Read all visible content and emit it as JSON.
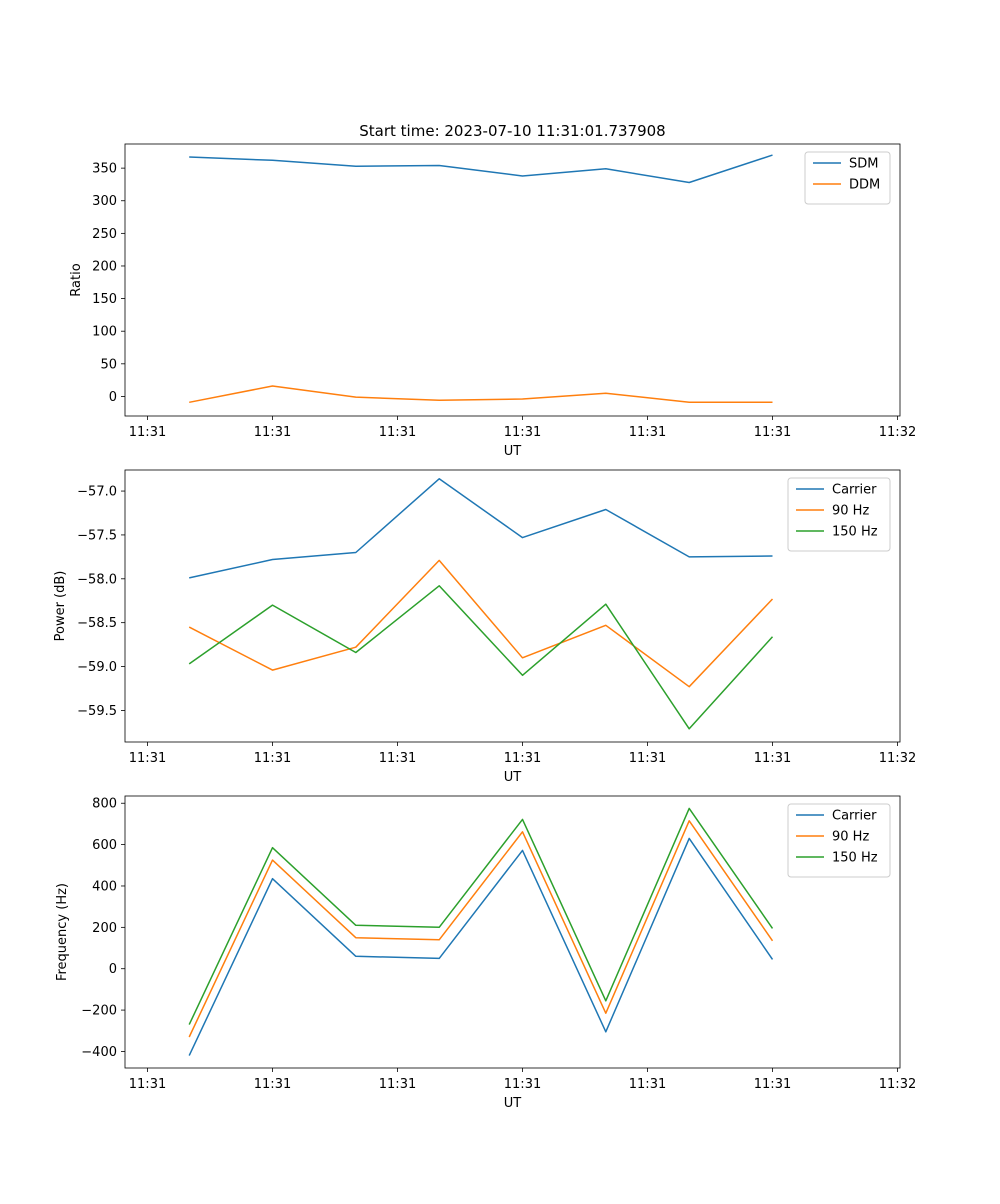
{
  "title": "Start time: 2023-07-10 11:31:01.737908",
  "colors": {
    "blue": "#1f77b4",
    "orange": "#ff7f0e",
    "green": "#2ca02c"
  },
  "chart_data": [
    {
      "type": "line",
      "ylabel": "Ratio",
      "xlabel": "UT",
      "x": [
        0,
        1,
        2,
        3,
        4,
        5,
        6,
        7
      ],
      "xlim": [
        -0.77,
        8.53
      ],
      "xticks": [
        -0.5,
        1.0,
        2.5,
        4.0,
        5.5,
        7.0,
        8.5
      ],
      "xtick_labels": [
        "11:31",
        "11:31",
        "11:31",
        "11:31",
        "11:31",
        "11:31",
        "11:32"
      ],
      "ylim": [
        -30,
        387
      ],
      "yticks": [
        0,
        50,
        100,
        150,
        200,
        250,
        300,
        350
      ],
      "ytick_labels": [
        "0",
        "50",
        "100",
        "150",
        "200",
        "250",
        "300",
        "350"
      ],
      "legend": "top-right",
      "series": [
        {
          "name": "SDM",
          "color": "#1f77b4",
          "values": [
            367,
            362,
            353,
            354,
            338,
            349,
            328,
            370
          ]
        },
        {
          "name": "DDM",
          "color": "#ff7f0e",
          "values": [
            -9,
            16,
            -1,
            -6,
            -4,
            5,
            -9,
            -9
          ]
        }
      ]
    },
    {
      "type": "line",
      "ylabel": "Power (dB)",
      "xlabel": "UT",
      "x": [
        0,
        1,
        2,
        3,
        4,
        5,
        6,
        7
      ],
      "xlim": [
        -0.77,
        8.53
      ],
      "xticks": [
        -0.5,
        1.0,
        2.5,
        4.0,
        5.5,
        7.0,
        8.5
      ],
      "xtick_labels": [
        "11:31",
        "11:31",
        "11:31",
        "11:31",
        "11:31",
        "11:31",
        "11:32"
      ],
      "ylim": [
        -59.86,
        -56.76
      ],
      "yticks": [
        -59.5,
        -59.0,
        -58.5,
        -58.0,
        -57.5,
        -57.0
      ],
      "ytick_labels": [
        "−59.5",
        "−59.0",
        "−58.5",
        "−58.0",
        "−57.5",
        "−57.0"
      ],
      "legend": "top-right",
      "series": [
        {
          "name": "Carrier",
          "color": "#1f77b4",
          "values": [
            -57.99,
            -57.78,
            -57.7,
            -56.86,
            -57.53,
            -57.21,
            -57.75,
            -57.74
          ]
        },
        {
          "name": "90 Hz",
          "color": "#ff7f0e",
          "values": [
            -58.55,
            -59.04,
            -58.78,
            -57.79,
            -58.9,
            -58.53,
            -59.23,
            -58.23
          ]
        },
        {
          "name": "150 Hz",
          "color": "#2ca02c",
          "values": [
            -58.97,
            -58.3,
            -58.84,
            -58.08,
            -59.1,
            -58.29,
            -59.71,
            -58.66
          ]
        }
      ]
    },
    {
      "type": "line",
      "ylabel": "Frequency (Hz)",
      "xlabel": "UT",
      "x": [
        0,
        1,
        2,
        3,
        4,
        5,
        6,
        7
      ],
      "xlim": [
        -0.77,
        8.53
      ],
      "xticks": [
        -0.5,
        1.0,
        2.5,
        4.0,
        5.5,
        7.0,
        8.5
      ],
      "xtick_labels": [
        "11:31",
        "11:31",
        "11:31",
        "11:31",
        "11:31",
        "11:31",
        "11:32"
      ],
      "ylim": [
        -480,
        835
      ],
      "yticks": [
        -400,
        -200,
        0,
        200,
        400,
        600,
        800
      ],
      "ytick_labels": [
        "−400",
        "−200",
        "0",
        "200",
        "400",
        "600",
        "800"
      ],
      "legend": "top-right",
      "series": [
        {
          "name": "Carrier",
          "color": "#1f77b4",
          "values": [
            -420,
            435,
            60,
            50,
            572,
            -305,
            630,
            45
          ]
        },
        {
          "name": "90 Hz",
          "color": "#ff7f0e",
          "values": [
            -330,
            525,
            150,
            140,
            662,
            -215,
            715,
            135
          ]
        },
        {
          "name": "150 Hz",
          "color": "#2ca02c",
          "values": [
            -270,
            585,
            210,
            200,
            722,
            -155,
            775,
            195
          ]
        }
      ]
    }
  ]
}
